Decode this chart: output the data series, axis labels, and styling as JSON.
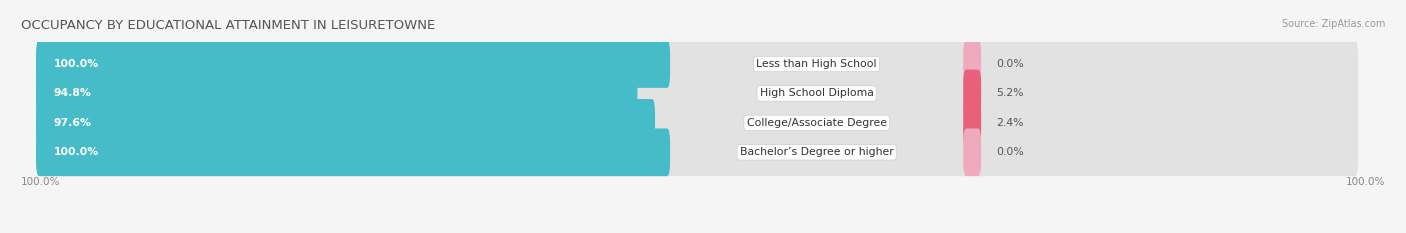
{
  "title": "OCCUPANCY BY EDUCATIONAL ATTAINMENT IN LEISURETOWNE",
  "source": "Source: ZipAtlas.com",
  "categories": [
    "Less than High School",
    "High School Diploma",
    "College/Associate Degree",
    "Bachelor’s Degree or higher"
  ],
  "owner_values": [
    100.0,
    94.8,
    97.6,
    100.0
  ],
  "renter_values": [
    0.0,
    5.2,
    2.4,
    0.0
  ],
  "owner_color": "#45bcc8",
  "renter_color_row": [
    "#f0aabe",
    "#e8607a",
    "#e8607a",
    "#f0aabe"
  ],
  "background_color": "#f5f5f5",
  "bar_bg_color": "#e2e2e2",
  "bar_height": 0.62,
  "title_fontsize": 9.5,
  "label_fontsize": 7.8,
  "tick_fontsize": 7.5,
  "legend_fontsize": 8,
  "source_fontsize": 7
}
